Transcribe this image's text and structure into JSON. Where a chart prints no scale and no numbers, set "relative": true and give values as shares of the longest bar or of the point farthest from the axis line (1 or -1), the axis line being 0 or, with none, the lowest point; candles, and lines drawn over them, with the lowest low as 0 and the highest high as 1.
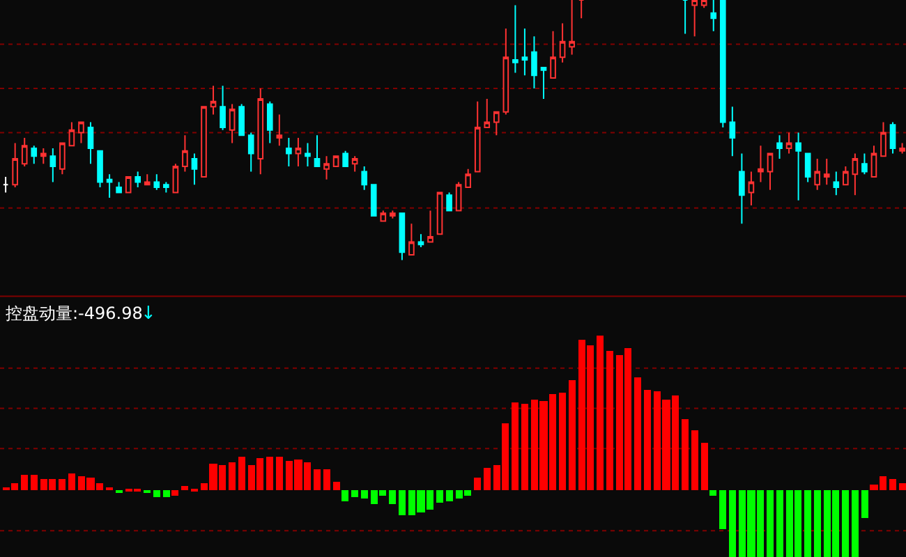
{
  "chart_data": [
    {
      "type": "candlestick",
      "relative": true,
      "ref_lines": [
        {
          "axis": "y",
          "value": 0.83,
          "color": "#800000",
          "line_style": "dotted"
        },
        {
          "axis": "y",
          "value": 0.66,
          "color": "#800000",
          "line_style": "dotted"
        },
        {
          "axis": "y",
          "value": 0.49,
          "color": "#800000",
          "line_style": "dotted"
        },
        {
          "axis": "y",
          "value": 0.2,
          "color": "#800000",
          "line_style": "dotted"
        }
      ],
      "categories": [
        null,
        null,
        null,
        null,
        null,
        null,
        null,
        null,
        null,
        null,
        null,
        null,
        null,
        null,
        null,
        null,
        null,
        null,
        null,
        null,
        null,
        null,
        null,
        null,
        null,
        null,
        null,
        null,
        null,
        null,
        null,
        null,
        null,
        null,
        null,
        null,
        null,
        null,
        null,
        null,
        null,
        null,
        null,
        null,
        null,
        null,
        null,
        null,
        null,
        null,
        null,
        null,
        null,
        null,
        null,
        null,
        null,
        null,
        null,
        null,
        null,
        null,
        null,
        null,
        null,
        null,
        null,
        null,
        null,
        null,
        null,
        null,
        null,
        null,
        null,
        null,
        null,
        null,
        null,
        null,
        null,
        null,
        null,
        null,
        null,
        null,
        null,
        null,
        null,
        null,
        null,
        null,
        null,
        null,
        null,
        null
      ],
      "ohlc": [
        [
          0.29,
          0.32,
          0.26,
          0.29
        ],
        [
          0.29,
          0.45,
          0.28,
          0.39
        ],
        [
          0.37,
          0.47,
          0.36,
          0.44
        ],
        [
          0.43,
          0.44,
          0.37,
          0.4
        ],
        [
          0.4,
          0.43,
          0.37,
          0.41
        ],
        [
          0.4,
          0.43,
          0.3,
          0.36
        ],
        [
          0.35,
          0.45,
          0.33,
          0.45
        ],
        [
          0.44,
          0.53,
          0.44,
          0.5
        ],
        [
          0.49,
          0.53,
          0.45,
          0.53
        ],
        [
          0.51,
          0.53,
          0.37,
          0.43
        ],
        [
          0.42,
          0.42,
          0.28,
          0.3
        ],
        [
          0.31,
          0.33,
          0.24,
          0.3
        ],
        [
          0.28,
          0.3,
          0.26,
          0.26
        ],
        [
          0.26,
          0.32,
          0.26,
          0.32
        ],
        [
          0.32,
          0.34,
          0.28,
          0.3
        ],
        [
          0.29,
          0.33,
          0.29,
          0.3
        ],
        [
          0.3,
          0.33,
          0.27,
          0.28
        ],
        [
          0.29,
          0.3,
          0.26,
          0.28
        ],
        [
          0.26,
          0.37,
          0.26,
          0.36
        ],
        [
          0.36,
          0.48,
          0.34,
          0.42
        ],
        [
          0.39,
          0.41,
          0.29,
          0.35
        ],
        [
          0.32,
          0.59,
          0.32,
          0.59
        ],
        [
          0.59,
          0.67,
          0.56,
          0.61
        ],
        [
          0.59,
          0.67,
          0.5,
          0.51
        ],
        [
          0.5,
          0.6,
          0.45,
          0.58
        ],
        [
          0.59,
          0.6,
          0.48,
          0.48
        ],
        [
          0.48,
          0.49,
          0.34,
          0.41
        ],
        [
          0.39,
          0.66,
          0.33,
          0.62
        ],
        [
          0.6,
          0.61,
          0.45,
          0.5
        ],
        [
          0.47,
          0.56,
          0.44,
          0.48
        ],
        [
          0.43,
          0.47,
          0.36,
          0.41
        ],
        [
          0.41,
          0.47,
          0.36,
          0.43
        ],
        [
          0.41,
          0.45,
          0.36,
          0.4
        ],
        [
          0.39,
          0.48,
          0.36,
          0.36
        ],
        [
          0.35,
          0.4,
          0.31,
          0.37
        ],
        [
          0.36,
          0.4,
          0.36,
          0.4
        ],
        [
          0.41,
          0.42,
          0.36,
          0.36
        ],
        [
          0.37,
          0.4,
          0.34,
          0.39
        ],
        [
          0.34,
          0.36,
          0.27,
          0.29
        ],
        [
          0.29,
          0.29,
          0.17,
          0.17
        ],
        [
          0.15,
          0.19,
          0.15,
          0.18
        ],
        [
          0.17,
          0.19,
          0.16,
          0.18
        ],
        [
          0.18,
          0.18,
          0,
          0.03
        ],
        [
          0.02,
          0.14,
          0.02,
          0.07
        ],
        [
          0.07,
          0.1,
          0.05,
          0.06
        ],
        [
          0.07,
          0.19,
          0.07,
          0.09
        ],
        [
          0.1,
          0.26,
          0.1,
          0.26
        ],
        [
          0.25,
          0.26,
          0.19,
          0.19
        ],
        [
          0.19,
          0.3,
          0.19,
          0.29
        ],
        [
          0.28,
          0.35,
          0.28,
          0.33
        ],
        [
          0.34,
          0.61,
          0.34,
          0.51
        ],
        [
          0.51,
          0.62,
          0.51,
          0.53
        ],
        [
          0.53,
          0.57,
          0.48,
          0.57
        ],
        [
          0.57,
          0.89,
          0.56,
          0.78
        ],
        [
          0.77,
          0.98,
          0.72,
          0.76
        ],
        [
          0.78,
          0.89,
          0.71,
          0.77
        ],
        [
          0.8,
          0.86,
          0.66,
          0.71
        ],
        [
          0.74,
          0.74,
          0.62,
          0.73
        ],
        [
          0.7,
          0.88,
          0.7,
          0.78
        ],
        [
          0.78,
          0.91,
          0.76,
          0.84
        ],
        [
          0.82,
          1,
          0.79,
          0.84
        ],
        [
          1,
          1,
          0.93,
          1
        ],
        null,
        null,
        null,
        null,
        null,
        null,
        null,
        null,
        null,
        null,
        [
          1,
          1,
          0.87,
          1
        ],
        [
          0.98,
          1,
          0.86,
          1
        ],
        [
          0.98,
          1,
          0.97,
          1
        ],
        [
          0.95,
          1,
          0.88,
          0.93
        ],
        [
          1,
          1,
          0.51,
          0.53
        ],
        [
          0.53,
          0.59,
          0.4,
          0.47
        ],
        [
          0.34,
          0.41,
          0.14,
          0.25
        ],
        [
          0.26,
          0.34,
          0.21,
          0.3
        ],
        [
          0.34,
          0.44,
          0.3,
          0.35
        ],
        [
          0.34,
          0.41,
          0.27,
          0.41
        ],
        [
          0.45,
          0.48,
          0.39,
          0.43
        ],
        [
          0.43,
          0.49,
          0.41,
          0.45
        ],
        [
          0.45,
          0.49,
          0.23,
          0.42
        ],
        [
          0.41,
          0.41,
          0.3,
          0.32
        ],
        [
          0.29,
          0.39,
          0.27,
          0.34
        ],
        [
          0.32,
          0.39,
          0.29,
          0.33
        ],
        [
          0.3,
          0.34,
          0.25,
          0.28
        ],
        [
          0.29,
          0.36,
          0.29,
          0.34
        ],
        [
          0.33,
          0.41,
          0.25,
          0.39
        ],
        [
          0.37,
          0.41,
          0.33,
          0.34
        ],
        [
          0.32,
          0.44,
          0.32,
          0.41
        ],
        [
          0.4,
          0.53,
          0.4,
          0.49
        ],
        [
          0.52,
          0.53,
          0.41,
          0.43
        ],
        [
          0.42,
          0.45,
          0.41,
          0.43
        ]
      ],
      "colors": [
        "#ffffff",
        "#ff3232",
        "#ff3232",
        "#00ffff",
        "#ff3232",
        "#00ffff",
        "#ff3232",
        "#ff3232",
        "#ff3232",
        "#00ffff",
        "#00ffff",
        "#00ffff",
        "#00ffff",
        "#ff3232",
        "#00ffff",
        "#ff3232",
        "#00ffff",
        "#00ffff",
        "#ff3232",
        "#ff3232",
        "#00ffff",
        "#ff3232",
        "#ff3232",
        "#00ffff",
        "#ff3232",
        "#00ffff",
        "#00ffff",
        "#ff3232",
        "#00ffff",
        "#ff3232",
        "#00ffff",
        "#ff3232",
        "#00ffff",
        "#00ffff",
        "#ff3232",
        "#ff3232",
        "#00ffff",
        "#ff3232",
        "#00ffff",
        "#00ffff",
        "#ff3232",
        "#ff3232",
        "#00ffff",
        "#ff3232",
        "#00ffff",
        "#ff3232",
        "#ff3232",
        "#00ffff",
        "#ff3232",
        "#ff3232",
        "#ff3232",
        "#ff3232",
        "#ff3232",
        "#ff3232",
        "#00ffff",
        "#00ffff",
        "#00ffff",
        "#00ffff",
        "#ff3232",
        "#ff3232",
        "#ff3232",
        "#ff3232",
        "#ff3232",
        "#ff3232",
        "#ff3232",
        "#ff3232",
        "#ff3232",
        "#ff3232",
        "#ff3232",
        "#ff3232",
        "#ff3232",
        "#ff3232",
        "#00ffff",
        "#ff3232",
        "#ff3232",
        "#00ffff",
        "#00ffff",
        "#00ffff",
        "#00ffff",
        "#ff3232",
        "#ff3232",
        "#ff3232",
        "#00ffff",
        "#ff3232",
        "#00ffff",
        "#00ffff",
        "#ff3232",
        "#ff3232",
        "#00ffff",
        "#ff3232",
        "#ff3232",
        "#00ffff",
        "#ff3232",
        "#ff3232",
        "#00ffff",
        "#ff3232"
      ]
    },
    {
      "type": "bar",
      "relative": true,
      "title": "控盘动量:-496.98",
      "annotations": [
        "↓"
      ],
      "categories": [
        null,
        null,
        null,
        null,
        null,
        null,
        null,
        null,
        null,
        null,
        null,
        null,
        null,
        null,
        null,
        null,
        null,
        null,
        null,
        null,
        null,
        null,
        null,
        null,
        null,
        null,
        null,
        null,
        null,
        null,
        null,
        null,
        null,
        null,
        null,
        null,
        null,
        null,
        null,
        null,
        null,
        null,
        null,
        null,
        null,
        null,
        null,
        null,
        null,
        null,
        null,
        null,
        null,
        null,
        null,
        null,
        null,
        null,
        null,
        null,
        null,
        null,
        null,
        null,
        null,
        null,
        null,
        null,
        null,
        null,
        null,
        null,
        null,
        null,
        null,
        null,
        null,
        null,
        null,
        null,
        null,
        null,
        null,
        null,
        null,
        null,
        null,
        null,
        null,
        null,
        null,
        null,
        null,
        null,
        null,
        null
      ],
      "ref_lines": [
        {
          "axis": "y",
          "value": 0.79,
          "color": "#800000",
          "line_style": "dotted"
        },
        {
          "axis": "y",
          "value": 0.53,
          "color": "#800000",
          "line_style": "dotted"
        },
        {
          "axis": "y",
          "value": 0.27,
          "color": "#800000",
          "line_style": "dotted"
        },
        {
          "axis": "y",
          "value": -0.26,
          "color": "#800000",
          "line_style": "dotted"
        }
      ],
      "values": [
        0.02,
        0.05,
        0.1,
        0.1,
        0.07,
        0.07,
        0.07,
        0.11,
        0.09,
        0.08,
        0.05,
        0.02,
        -0.01,
        0.01,
        0.01,
        -0.01,
        -0.04,
        -0.04,
        -0.03,
        0.03,
        0.01,
        0.05,
        0.17,
        0.16,
        0.18,
        0.22,
        0.16,
        0.21,
        0.22,
        0.22,
        0.19,
        0.2,
        0.18,
        0.14,
        0.14,
        0.06,
        -0.07,
        -0.04,
        -0.05,
        -0.09,
        -0.03,
        -0.09,
        -0.16,
        -0.16,
        -0.14,
        -0.12,
        -0.08,
        -0.07,
        -0.05,
        -0.03,
        0.08,
        0.15,
        0.16,
        0.43,
        0.57,
        0.56,
        0.59,
        0.58,
        0.62,
        0.63,
        0.71,
        0.97,
        0.94,
        1.0,
        0.9,
        0.87,
        0.92,
        0.73,
        0.65,
        0.64,
        0.59,
        0.61,
        0.46,
        0.39,
        0.31,
        -0.03,
        -0.25,
        -0.43,
        -0.43,
        -0.43,
        -0.43,
        -0.43,
        -0.43,
        -0.43,
        -0.43,
        -0.43,
        -0.43,
        -0.43,
        -0.43,
        -0.43,
        -0.43,
        -0.18,
        0.04,
        0.09,
        0.07,
        0.05
      ],
      "colors": [
        "#ff0000",
        "#ff0000",
        "#ff0000",
        "#ff0000",
        "#ff0000",
        "#ff0000",
        "#ff0000",
        "#ff0000",
        "#ff0000",
        "#ff0000",
        "#ff0000",
        "#ff0000",
        "#00ff00",
        "#ff0000",
        "#ff0000",
        "#00ff00",
        "#00ff00",
        "#00ff00",
        "#ff0000",
        "#ff0000",
        "#ff0000",
        "#ff0000",
        "#ff0000",
        "#ff0000",
        "#ff0000",
        "#ff0000",
        "#ff0000",
        "#ff0000",
        "#ff0000",
        "#ff0000",
        "#ff0000",
        "#ff0000",
        "#ff0000",
        "#ff0000",
        "#ff0000",
        "#ff0000",
        "#00ff00",
        "#00ff00",
        "#00ff00",
        "#00ff00",
        "#00ff00",
        "#00ff00",
        "#00ff00",
        "#00ff00",
        "#00ff00",
        "#00ff00",
        "#00ff00",
        "#00ff00",
        "#00ff00",
        "#00ff00",
        "#ff0000",
        "#ff0000",
        "#ff0000",
        "#ff0000",
        "#ff0000",
        "#ff0000",
        "#ff0000",
        "#ff0000",
        "#ff0000",
        "#ff0000",
        "#ff0000",
        "#ff0000",
        "#ff0000",
        "#ff0000",
        "#ff0000",
        "#ff0000",
        "#ff0000",
        "#ff0000",
        "#ff0000",
        "#ff0000",
        "#ff0000",
        "#ff0000",
        "#ff0000",
        "#ff0000",
        "#ff0000",
        "#00ff00",
        "#00ff00",
        "#00ff00",
        "#00ff00",
        "#00ff00",
        "#00ff00",
        "#00ff00",
        "#00ff00",
        "#00ff00",
        "#00ff00",
        "#00ff00",
        "#00ff00",
        "#00ff00",
        "#00ff00",
        "#00ff00",
        "#00ff00",
        "#00ff00",
        "#ff0000",
        "#ff0000",
        "#ff0000",
        "#ff0000"
      ]
    }
  ]
}
